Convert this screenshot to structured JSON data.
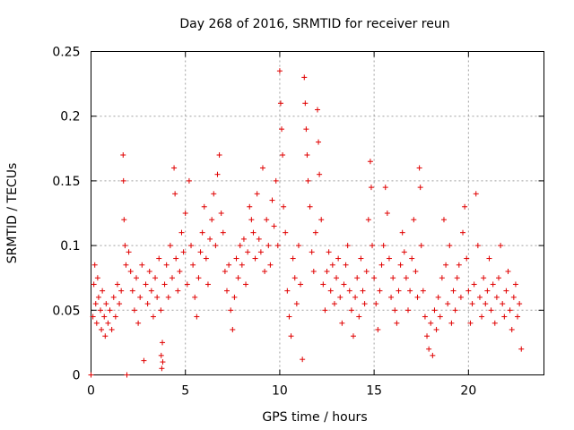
{
  "chart_data": {
    "type": "scatter",
    "title": "Day 268 of 2016, SRMTID for receiver reun",
    "xlabel": "GPS time / hours",
    "ylabel": "SRMTID / TECUs",
    "xlim": [
      0,
      24
    ],
    "ylim": [
      0,
      0.25
    ],
    "xticks": [
      "0",
      "5",
      "10",
      "15",
      "20"
    ],
    "yticks": [
      "0",
      "0.05",
      "0.1",
      "0.15",
      "0.2",
      "0.25"
    ],
    "grid": true,
    "marker": "plus",
    "series_color": "#e00000",
    "series": [
      {
        "name": "SRMTID",
        "points": [
          [
            0.0,
            0.0
          ],
          [
            0.1,
            0.045
          ],
          [
            0.15,
            0.07
          ],
          [
            0.2,
            0.085
          ],
          [
            0.25,
            0.055
          ],
          [
            0.3,
            0.04
          ],
          [
            0.35,
            0.075
          ],
          [
            0.4,
            0.06
          ],
          [
            0.5,
            0.05
          ],
          [
            0.55,
            0.035
          ],
          [
            0.6,
            0.065
          ],
          [
            0.7,
            0.045
          ],
          [
            0.75,
            0.03
          ],
          [
            0.8,
            0.055
          ],
          [
            0.9,
            0.04
          ],
          [
            1.0,
            0.05
          ],
          [
            1.1,
            0.035
          ],
          [
            1.2,
            0.06
          ],
          [
            1.3,
            0.045
          ],
          [
            1.4,
            0.07
          ],
          [
            1.5,
            0.055
          ],
          [
            1.6,
            0.065
          ],
          [
            1.7,
            0.17
          ],
          [
            1.72,
            0.15
          ],
          [
            1.75,
            0.12
          ],
          [
            1.8,
            0.1
          ],
          [
            1.85,
            0.085
          ],
          [
            1.9,
            0.0
          ],
          [
            2.0,
            0.095
          ],
          [
            2.1,
            0.08
          ],
          [
            2.2,
            0.065
          ],
          [
            2.3,
            0.05
          ],
          [
            2.4,
            0.075
          ],
          [
            2.5,
            0.04
          ],
          [
            2.6,
            0.06
          ],
          [
            2.7,
            0.085
          ],
          [
            2.8,
            0.011
          ],
          [
            2.9,
            0.07
          ],
          [
            3.0,
            0.055
          ],
          [
            3.1,
            0.08
          ],
          [
            3.2,
            0.065
          ],
          [
            3.3,
            0.045
          ],
          [
            3.4,
            0.075
          ],
          [
            3.5,
            0.06
          ],
          [
            3.6,
            0.09
          ],
          [
            3.7,
            0.05
          ],
          [
            3.72,
            0.015
          ],
          [
            3.75,
            0.005
          ],
          [
            3.78,
            0.025
          ],
          [
            3.8,
            0.01
          ],
          [
            3.9,
            0.07
          ],
          [
            4.0,
            0.085
          ],
          [
            4.1,
            0.06
          ],
          [
            4.2,
            0.1
          ],
          [
            4.3,
            0.075
          ],
          [
            4.4,
            0.16
          ],
          [
            4.45,
            0.14
          ],
          [
            4.5,
            0.09
          ],
          [
            4.6,
            0.065
          ],
          [
            4.7,
            0.08
          ],
          [
            4.8,
            0.11
          ],
          [
            4.9,
            0.095
          ],
          [
            5.0,
            0.125
          ],
          [
            5.1,
            0.07
          ],
          [
            5.2,
            0.15
          ],
          [
            5.3,
            0.1
          ],
          [
            5.4,
            0.085
          ],
          [
            5.5,
            0.06
          ],
          [
            5.6,
            0.045
          ],
          [
            5.7,
            0.075
          ],
          [
            5.8,
            0.095
          ],
          [
            5.9,
            0.11
          ],
          [
            6.0,
            0.13
          ],
          [
            6.1,
            0.09
          ],
          [
            6.2,
            0.07
          ],
          [
            6.3,
            0.105
          ],
          [
            6.4,
            0.12
          ],
          [
            6.5,
            0.14
          ],
          [
            6.6,
            0.1
          ],
          [
            6.7,
            0.155
          ],
          [
            6.8,
            0.17
          ],
          [
            6.9,
            0.125
          ],
          [
            7.0,
            0.11
          ],
          [
            7.1,
            0.08
          ],
          [
            7.2,
            0.065
          ],
          [
            7.3,
            0.085
          ],
          [
            7.4,
            0.05
          ],
          [
            7.5,
            0.035
          ],
          [
            7.6,
            0.06
          ],
          [
            7.7,
            0.09
          ],
          [
            7.8,
            0.075
          ],
          [
            7.9,
            0.1
          ],
          [
            8.0,
            0.085
          ],
          [
            8.1,
            0.105
          ],
          [
            8.2,
            0.07
          ],
          [
            8.3,
            0.095
          ],
          [
            8.4,
            0.13
          ],
          [
            8.5,
            0.12
          ],
          [
            8.6,
            0.11
          ],
          [
            8.7,
            0.09
          ],
          [
            8.8,
            0.14
          ],
          [
            8.9,
            0.105
          ],
          [
            9.0,
            0.095
          ],
          [
            9.1,
            0.16
          ],
          [
            9.2,
            0.08
          ],
          [
            9.3,
            0.12
          ],
          [
            9.4,
            0.1
          ],
          [
            9.5,
            0.085
          ],
          [
            9.6,
            0.135
          ],
          [
            9.7,
            0.115
          ],
          [
            9.8,
            0.15
          ],
          [
            9.9,
            0.1
          ],
          [
            10.0,
            0.235
          ],
          [
            10.05,
            0.21
          ],
          [
            10.1,
            0.19
          ],
          [
            10.15,
            0.17
          ],
          [
            10.2,
            0.13
          ],
          [
            10.3,
            0.11
          ],
          [
            10.4,
            0.065
          ],
          [
            10.5,
            0.045
          ],
          [
            10.6,
            0.03
          ],
          [
            10.7,
            0.09
          ],
          [
            10.8,
            0.075
          ],
          [
            10.9,
            0.055
          ],
          [
            11.0,
            0.1
          ],
          [
            11.1,
            0.07
          ],
          [
            11.2,
            0.012
          ],
          [
            11.3,
            0.23
          ],
          [
            11.35,
            0.21
          ],
          [
            11.4,
            0.19
          ],
          [
            11.45,
            0.17
          ],
          [
            11.5,
            0.15
          ],
          [
            11.6,
            0.13
          ],
          [
            11.7,
            0.095
          ],
          [
            11.8,
            0.08
          ],
          [
            11.9,
            0.11
          ],
          [
            12.0,
            0.205
          ],
          [
            12.05,
            0.18
          ],
          [
            12.1,
            0.155
          ],
          [
            12.2,
            0.12
          ],
          [
            12.3,
            0.07
          ],
          [
            12.4,
            0.05
          ],
          [
            12.5,
            0.08
          ],
          [
            12.6,
            0.095
          ],
          [
            12.7,
            0.065
          ],
          [
            12.8,
            0.085
          ],
          [
            12.9,
            0.055
          ],
          [
            13.0,
            0.075
          ],
          [
            13.1,
            0.09
          ],
          [
            13.2,
            0.06
          ],
          [
            13.3,
            0.04
          ],
          [
            13.4,
            0.07
          ],
          [
            13.5,
            0.085
          ],
          [
            13.6,
            0.1
          ],
          [
            13.7,
            0.065
          ],
          [
            13.8,
            0.05
          ],
          [
            13.9,
            0.03
          ],
          [
            14.0,
            0.06
          ],
          [
            14.1,
            0.075
          ],
          [
            14.2,
            0.045
          ],
          [
            14.3,
            0.09
          ],
          [
            14.4,
            0.065
          ],
          [
            14.5,
            0.055
          ],
          [
            14.6,
            0.08
          ],
          [
            14.7,
            0.12
          ],
          [
            14.8,
            0.165
          ],
          [
            14.85,
            0.145
          ],
          [
            14.9,
            0.1
          ],
          [
            15.0,
            0.075
          ],
          [
            15.1,
            0.055
          ],
          [
            15.2,
            0.035
          ],
          [
            15.3,
            0.065
          ],
          [
            15.4,
            0.085
          ],
          [
            15.5,
            0.1
          ],
          [
            15.6,
            0.145
          ],
          [
            15.7,
            0.125
          ],
          [
            15.8,
            0.09
          ],
          [
            15.9,
            0.06
          ],
          [
            16.0,
            0.075
          ],
          [
            16.1,
            0.05
          ],
          [
            16.2,
            0.04
          ],
          [
            16.3,
            0.065
          ],
          [
            16.4,
            0.085
          ],
          [
            16.5,
            0.11
          ],
          [
            16.6,
            0.095
          ],
          [
            16.7,
            0.075
          ],
          [
            16.8,
            0.05
          ],
          [
            16.9,
            0.065
          ],
          [
            17.0,
            0.09
          ],
          [
            17.1,
            0.12
          ],
          [
            17.2,
            0.08
          ],
          [
            17.3,
            0.06
          ],
          [
            17.4,
            0.16
          ],
          [
            17.45,
            0.145
          ],
          [
            17.5,
            0.1
          ],
          [
            17.6,
            0.065
          ],
          [
            17.7,
            0.045
          ],
          [
            17.8,
            0.03
          ],
          [
            17.9,
            0.02
          ],
          [
            18.0,
            0.04
          ],
          [
            18.1,
            0.015
          ],
          [
            18.2,
            0.05
          ],
          [
            18.3,
            0.035
          ],
          [
            18.4,
            0.06
          ],
          [
            18.5,
            0.045
          ],
          [
            18.6,
            0.075
          ],
          [
            18.7,
            0.12
          ],
          [
            18.8,
            0.085
          ],
          [
            18.9,
            0.055
          ],
          [
            19.0,
            0.1
          ],
          [
            19.1,
            0.04
          ],
          [
            19.2,
            0.065
          ],
          [
            19.3,
            0.05
          ],
          [
            19.4,
            0.075
          ],
          [
            19.5,
            0.085
          ],
          [
            19.6,
            0.06
          ],
          [
            19.7,
            0.11
          ],
          [
            19.8,
            0.13
          ],
          [
            19.9,
            0.09
          ],
          [
            20.0,
            0.065
          ],
          [
            20.1,
            0.04
          ],
          [
            20.2,
            0.055
          ],
          [
            20.3,
            0.07
          ],
          [
            20.4,
            0.14
          ],
          [
            20.5,
            0.1
          ],
          [
            20.6,
            0.06
          ],
          [
            20.7,
            0.045
          ],
          [
            20.8,
            0.075
          ],
          [
            20.9,
            0.055
          ],
          [
            21.0,
            0.065
          ],
          [
            21.1,
            0.09
          ],
          [
            21.2,
            0.05
          ],
          [
            21.3,
            0.07
          ],
          [
            21.4,
            0.04
          ],
          [
            21.5,
            0.06
          ],
          [
            21.6,
            0.075
          ],
          [
            21.7,
            0.1
          ],
          [
            21.8,
            0.055
          ],
          [
            21.9,
            0.045
          ],
          [
            22.0,
            0.065
          ],
          [
            22.1,
            0.08
          ],
          [
            22.2,
            0.05
          ],
          [
            22.3,
            0.035
          ],
          [
            22.4,
            0.06
          ],
          [
            22.5,
            0.07
          ],
          [
            22.6,
            0.045
          ],
          [
            22.7,
            0.055
          ],
          [
            22.8,
            0.02
          ]
        ]
      }
    ]
  }
}
